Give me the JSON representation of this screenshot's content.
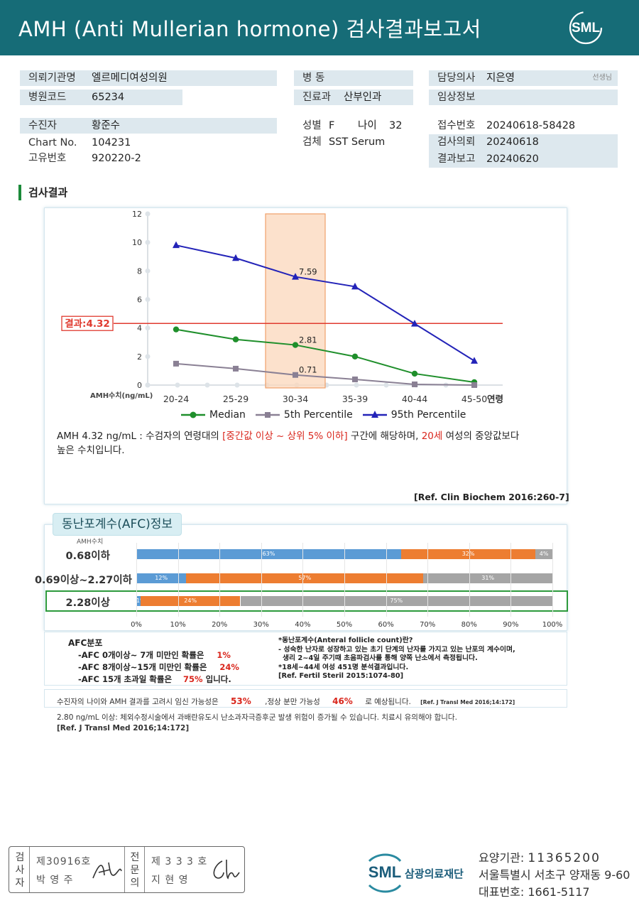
{
  "header": {
    "title": "AMH (Anti Mullerian hormone) 검사결과보고서",
    "logo_text": "SML"
  },
  "info": {
    "institution_label": "의뢰기관명",
    "institution": "엘르메디여성의원",
    "hospital_code_label": "병원코드",
    "hospital_code": "65234",
    "patient_label": "수진자",
    "patient": "황준수",
    "chart_label": "Chart No.",
    "chart": "104231",
    "id_label": "고유번호",
    "id": "920220-2",
    "ward_label": "병 동",
    "ward": "",
    "dept_label": "진료과",
    "dept": "산부인과",
    "sex_label": "성별",
    "sex": "F",
    "age_label": "나이",
    "age": "32",
    "specimen_label": "검체",
    "specimen": "SST Serum",
    "doctor_label": "담당의사",
    "doctor": "지은영",
    "doctor_suffix": "선생님",
    "clinical_label": "임상정보",
    "clinical": "",
    "receipt_label": "접수번호",
    "receipt": "20240618-58428",
    "request_label": "검사의뢰",
    "request": "20240618",
    "report_label": "결과보고",
    "report": "20240620"
  },
  "section_title": "검사결과",
  "chart_data": {
    "type": "line",
    "categories": [
      "20-24",
      "25-29",
      "30-34",
      "35-39",
      "40-44",
      "45-50"
    ],
    "x_axis_suffix": "연령",
    "ylabel": "AMH수치(ng/mL)",
    "ylim": [
      0,
      12
    ],
    "yticks": [
      "0",
      "2",
      "4",
      "6",
      "8",
      "10",
      "12"
    ],
    "grid": false,
    "highlight_category": "30-34",
    "result_line": {
      "label": "결과:4.32",
      "value": 4.32,
      "color": "#e03a2f"
    },
    "series": [
      {
        "name": "Median",
        "color": "#1f8f2b",
        "marker": "circle",
        "values": [
          3.9,
          3.2,
          2.81,
          2.0,
          0.8,
          0.2
        ]
      },
      {
        "name": "5th Percentile",
        "color": "#8a8094",
        "marker": "square",
        "values": [
          1.5,
          1.15,
          0.71,
          0.4,
          0.05,
          0.0
        ]
      },
      {
        "name": "95th Percentile",
        "color": "#2323b8",
        "marker": "triangle",
        "values": [
          9.8,
          8.9,
          7.59,
          6.9,
          4.3,
          1.7
        ]
      }
    ],
    "data_labels": [
      {
        "series": 2,
        "index": 2,
        "text": "7.59"
      },
      {
        "series": 0,
        "index": 2,
        "text": "2.81"
      },
      {
        "series": 1,
        "index": 2,
        "text": "0.71"
      }
    ]
  },
  "interpretation": {
    "p1": "AMH  4.32 ng/mL : 수검자의 연령대의 ",
    "range": "[중간값 이상 ~ 상위 5% 이하]",
    "p2": "  구간에 해당하며, ",
    "age": "20세",
    "p3": " 여성의 중앙값보다",
    "p4": "높은 수치입니다.",
    "ref": "[Ref. Clin Biochem 2016:260-7]"
  },
  "afc": {
    "tab": "동난포계수(AFC)정보",
    "sub": "AMH수치",
    "colors": {
      "blue": "#5b9bd5",
      "orange": "#ed7d31",
      "gray": "#a5a5a5"
    },
    "rows": [
      {
        "label": "0.68이하",
        "values": [
          63,
          32,
          4
        ]
      },
      {
        "label": "0.69이상~2.27이하",
        "values": [
          12,
          57,
          31
        ]
      },
      {
        "label": "2.28이상",
        "values": [
          1,
          24,
          75
        ]
      }
    ],
    "axis": [
      "0%",
      "10%",
      "20%",
      "30%",
      "40%",
      "50%",
      "60%",
      "70%",
      "80%",
      "90%",
      "100%"
    ],
    "left": {
      "title": "AFC분포",
      "l1": "-AFC  0개이상~ 7개 미만인 확률은",
      "v1": "1%",
      "l2": "-AFC  8개이상~15개 미만인 확률은",
      "v2": "24%",
      "l3": "-AFC  15개 초과일 확률은",
      "v3": "75%",
      "l3b": " 입니다."
    },
    "right": {
      "l1": "*동난포계수(Anteral follicle count)란?",
      "l2": "- 성숙한 난자로 성장하고 있는 초기 단계의 난자를 가지고 있는 난포의 계수이며,",
      "l3": "  생리 2~4일 주기때 초음파검사를 통해 양쪽 난소에서 측정됩니다.",
      "l4": "*18세~44세 여성 451명 분석결과입니다.",
      "l5": "[Ref. Fertil Steril 2015:1074-80]"
    }
  },
  "probability": {
    "p1": "수진자의  나이와 AMH  결과를 고려시 임신 가능성은",
    "v1": "53%",
    "p2": ",정상 분만 가능성",
    "v2": "46%",
    "p3": "로 예상됩니다.",
    "ref": "[Ref. J Transl Med 2016;14:172]"
  },
  "warning": {
    "l1": "2.80  ng/mL  이상: 체외수정시술에서 과배란유도시 난소과자극증후군 발생 위험이 증가될 수 있습니다. 치료시 유의해야 합니다.",
    "ref": "[Ref. J Transl Med 2016;14:172]"
  },
  "signature": {
    "label1": [
      "검",
      "사",
      "자"
    ],
    "no1": "제30916호",
    "name1": "박 영 주",
    "label2": [
      "전",
      "문",
      "의"
    ],
    "no2": "제 3 3 3 호",
    "name2": "지 현 영"
  },
  "footer": {
    "brand": "SML",
    "foundation": "삼광의료재단",
    "code_label": "요양기관",
    "code": "11365200",
    "address": "서울특별시 서초구 양재동 9-60",
    "phone_label": "대표번호",
    "phone": "1661-5117"
  }
}
